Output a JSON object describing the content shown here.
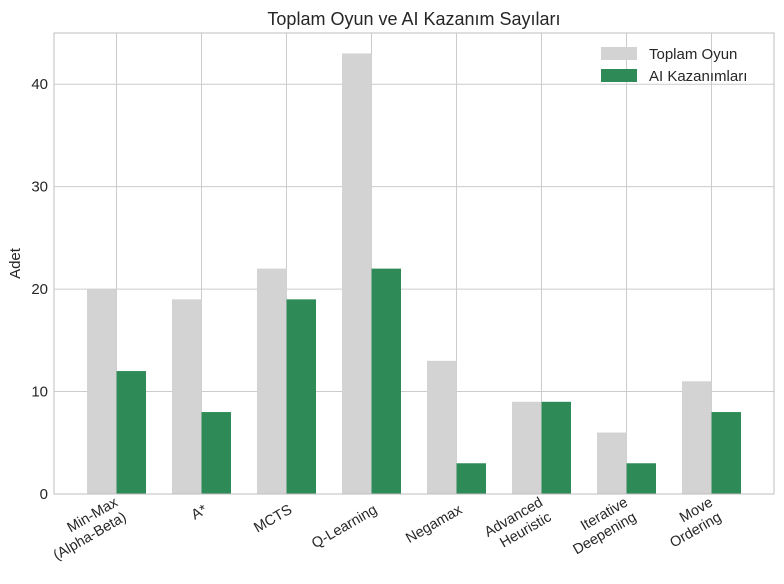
{
  "chart_data": {
    "type": "bar",
    "title": "Toplam Oyun ve AI Kazanım Sayıları",
    "xlabel": "",
    "ylabel": "Adet",
    "ylim": [
      0,
      45
    ],
    "yticks": [
      0,
      10,
      20,
      30,
      40
    ],
    "grid": true,
    "legend_position": "top-right",
    "categories": [
      [
        "Min-Max",
        "(Alpha-Beta)"
      ],
      [
        "A*"
      ],
      [
        "MCTS"
      ],
      [
        "Q-Learning"
      ],
      [
        "Negamax"
      ],
      [
        "Advanced",
        "Heuristic"
      ],
      [
        "Iterative",
        "Deepening"
      ],
      [
        "Move",
        "Ordering"
      ]
    ],
    "series": [
      {
        "name": "Toplam Oyun",
        "color": "#d3d3d3",
        "values": [
          20,
          19,
          22,
          43,
          13,
          9,
          6,
          11
        ]
      },
      {
        "name": "AI Kazanımları",
        "color": "#2e8b57",
        "values": [
          12,
          8,
          19,
          22,
          3,
          9,
          3,
          8
        ]
      }
    ]
  }
}
